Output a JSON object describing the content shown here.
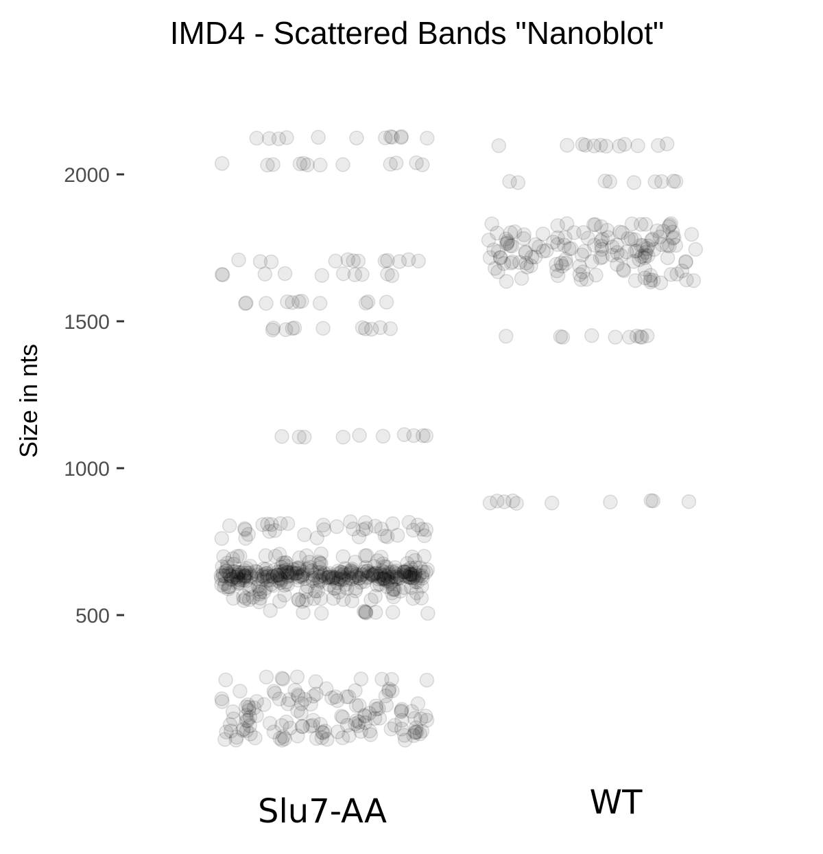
{
  "chart_data": {
    "type": "scatter",
    "title": "IMD4 - Scattered Bands \"Nanoblot\"",
    "xlabel": "",
    "ylabel": "Size in nts",
    "categories": [
      "Slu7-AA",
      "WT"
    ],
    "y_ticks": [
      500,
      1000,
      1500,
      2000
    ],
    "ylim": [
      0,
      2250
    ],
    "grid": false,
    "legend": "none",
    "point_color": "#000000",
    "point_opacity": 0.08,
    "bands": [
      {
        "category": "Slu7-AA",
        "sizes": [
          2125,
          2035
        ],
        "counts": [
          12,
          12
        ],
        "spread": 0
      },
      {
        "category": "Slu7-AA",
        "sizes": [
          1705,
          1660
        ],
        "counts": [
          12,
          10
        ],
        "spread": 0
      },
      {
        "category": "Slu7-AA",
        "sizes": [
          1565
        ],
        "counts": [
          11
        ],
        "spread": 0
      },
      {
        "category": "Slu7-AA",
        "sizes": [
          1475
        ],
        "counts": [
          11
        ],
        "spread": 0
      },
      {
        "category": "Slu7-AA",
        "sizes": [
          1110
        ],
        "counts": [
          10
        ],
        "spread": 0
      },
      {
        "category": "Slu7-AA",
        "sizes": [
          810,
          790,
          770
        ],
        "counts": [
          14,
          12,
          10
        ],
        "spread": 6
      },
      {
        "category": "Slu7-AA",
        "sizes": [
          700,
          680,
          660,
          650,
          645,
          640,
          635,
          630,
          625,
          620,
          610,
          600,
          590,
          580,
          560,
          550
        ],
        "counts": [
          16,
          14,
          22,
          28,
          30,
          34,
          34,
          30,
          28,
          24,
          18,
          14,
          12,
          12,
          12,
          12
        ],
        "spread": 5
      },
      {
        "category": "Slu7-AA",
        "sizes": [
          510
        ],
        "counts": [
          10
        ],
        "spread": 2
      },
      {
        "category": "Slu7-AA",
        "sizes": [
          280,
          240,
          220,
          200,
          180,
          160,
          140,
          120,
          100,
          80
        ],
        "counts": [
          10,
          10,
          12,
          12,
          12,
          12,
          14,
          18,
          20,
          14
        ],
        "spread": 8
      },
      {
        "category": "WT",
        "sizes": [
          2100
        ],
        "counts": [
          12
        ],
        "spread": 0
      },
      {
        "category": "WT",
        "sizes": [
          1975
        ],
        "counts": [
          9
        ],
        "spread": 0
      },
      {
        "category": "WT",
        "sizes": [
          1830,
          1800,
          1780,
          1760,
          1740,
          1720,
          1700,
          1680,
          1660,
          1640
        ],
        "counts": [
          12,
          14,
          18,
          20,
          18,
          16,
          14,
          10,
          8,
          12
        ],
        "spread": 6
      },
      {
        "category": "WT",
        "sizes": [
          1450
        ],
        "counts": [
          10
        ],
        "spread": 0
      },
      {
        "category": "WT",
        "sizes": [
          885
        ],
        "counts": [
          10
        ],
        "spread": 0
      }
    ]
  }
}
